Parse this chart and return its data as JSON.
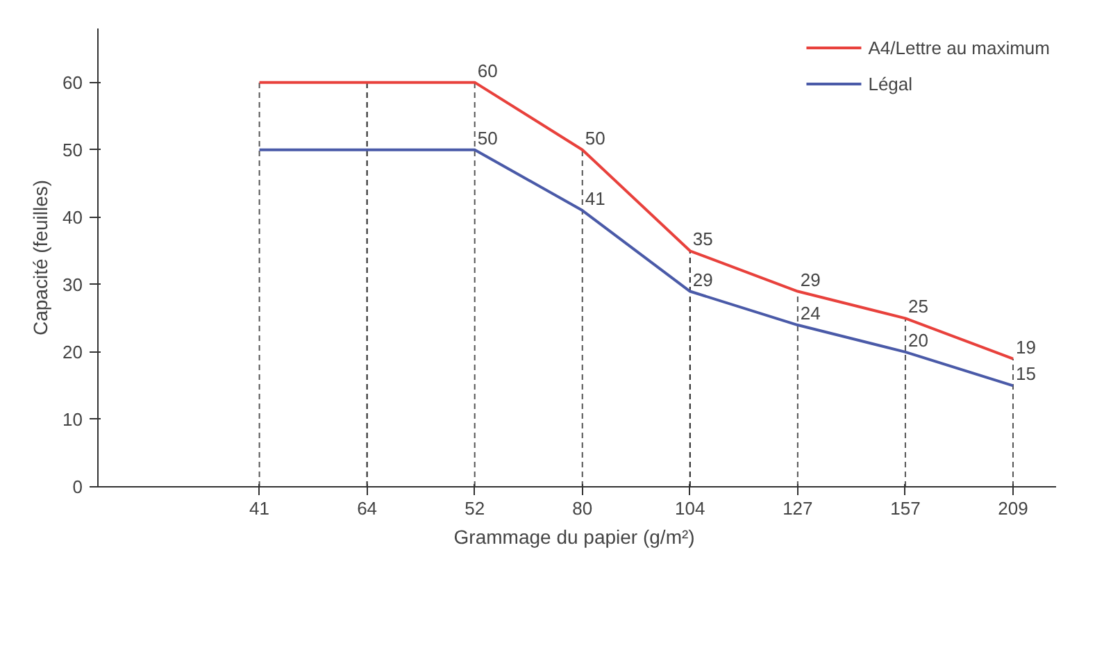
{
  "chart_data": {
    "type": "line",
    "xlabel": "Grammage du papier  (g/m²)",
    "ylabel": "Capacité (feuilles)",
    "categories": [
      "41",
      "64",
      "52",
      "80",
      "104",
      "127",
      "157",
      "209"
    ],
    "series": [
      {
        "name": "A4/Lettre au maximum",
        "color": "#e8413c",
        "values": [
          60,
          60,
          60,
          50,
          35,
          29,
          25,
          19
        ],
        "value_labels": [
          null,
          null,
          "60",
          "50",
          "35",
          "29",
          "25",
          "19"
        ]
      },
      {
        "name": "Légal",
        "color": "#4a5aa8",
        "values": [
          50,
          50,
          50,
          41,
          29,
          24,
          20,
          15
        ],
        "value_labels": [
          null,
          null,
          "50",
          "41",
          "29",
          "24",
          "20",
          "15"
        ]
      }
    ],
    "ylim": [
      0,
      68
    ],
    "yticks": [
      0,
      10,
      20,
      30,
      40,
      50,
      60
    ],
    "ref_lines": [
      {
        "axis": "x",
        "value": "41",
        "color": "#555555",
        "line_style": "dashed"
      },
      {
        "axis": "x",
        "value": "64",
        "color": "#222222",
        "line_style": "dashed"
      },
      {
        "axis": "x",
        "value": "52",
        "color": "#555555",
        "line_style": "dashed"
      },
      {
        "axis": "x",
        "value": "80",
        "color": "#555555",
        "line_style": "dashed"
      },
      {
        "axis": "x",
        "value": "127",
        "color": "#555555",
        "line_style": "dashed"
      },
      {
        "axis": "x",
        "value": "104",
        "color": "#222222",
        "line_style": "dashed"
      },
      {
        "axis": "x",
        "value": "157",
        "color": "#555555",
        "line_style": "dashed"
      },
      {
        "axis": "x",
        "value": "209",
        "color": "#555555",
        "line_style": "dashed"
      }
    ],
    "grid": false,
    "legend": "top right",
    "marker": "none",
    "line_style": "solid"
  }
}
